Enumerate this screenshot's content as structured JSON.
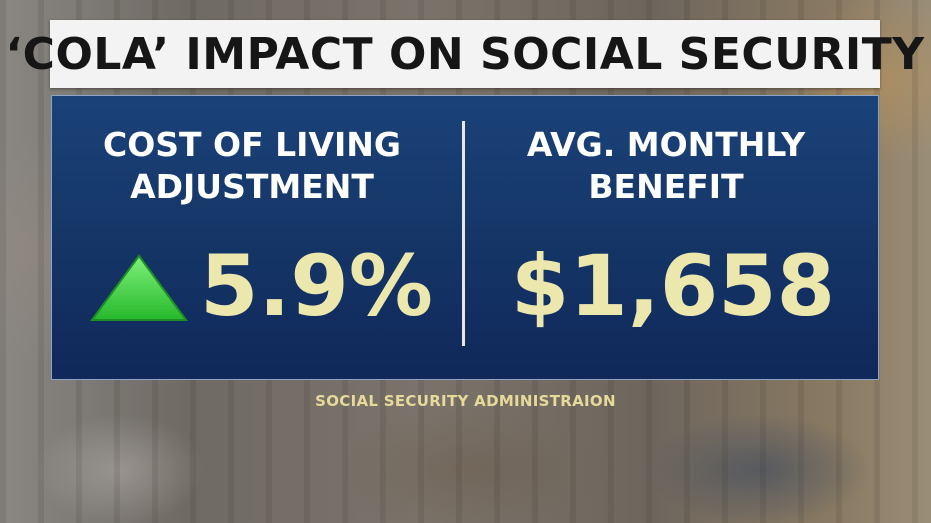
{
  "title": "‘COLA’ IMPACT ON SOCIAL SECURITY",
  "left_column": {
    "heading_line1": "COST OF LIVING",
    "heading_line2": "ADJUSTMENT",
    "value": "5.9%",
    "indicator_icon": "green-up-triangle-icon"
  },
  "right_column": {
    "heading_line1": "AVG. MONTHLY",
    "heading_line2": "BENEFIT",
    "value": "$1,658"
  },
  "source": "SOCIAL SECURITY ADMINISTRAION",
  "colors": {
    "panel_blue": "#163769",
    "value_text": "#ece7ad",
    "arrow_green": "#3fd63f",
    "title_bg": "#f3f3f3"
  }
}
